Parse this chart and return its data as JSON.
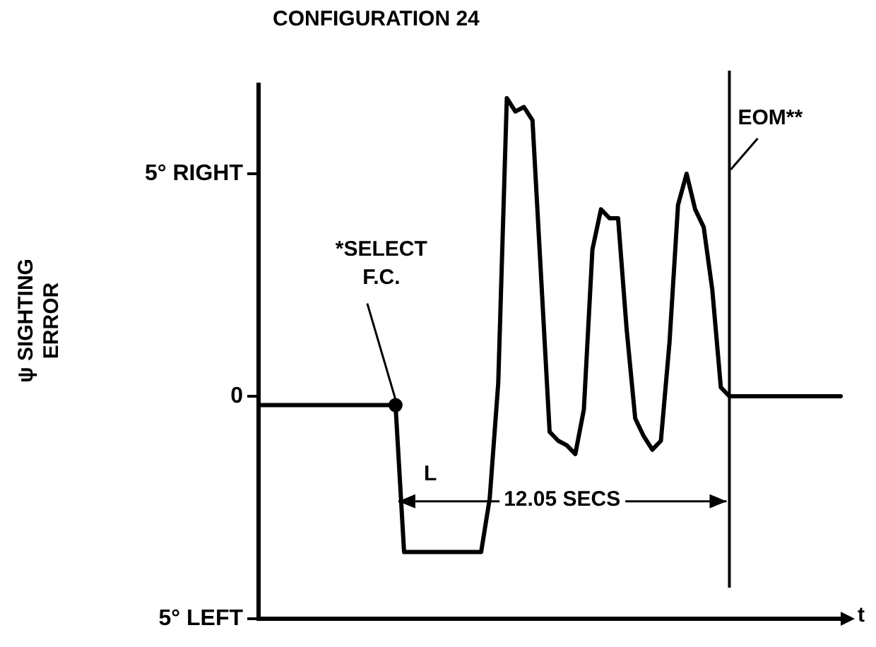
{
  "chart_data": {
    "type": "line",
    "title": "CONFIGURATION 24",
    "ylabel": "ψ SIGHTING ERROR",
    "xlabel": "t",
    "categories": [
      null,
      null,
      null,
      null,
      null,
      null,
      null,
      null,
      null,
      null,
      null,
      null,
      null,
      null,
      null,
      null,
      null,
      null,
      null,
      null,
      null,
      null,
      null,
      null,
      null,
      null,
      null,
      null,
      null,
      null,
      null,
      null,
      null,
      null,
      null,
      null,
      null,
      null,
      null,
      null,
      null,
      null,
      null,
      null,
      null,
      null,
      null,
      null,
      null,
      null,
      null,
      null,
      null,
      null,
      null,
      null,
      null,
      null,
      null,
      null,
      null,
      null,
      null,
      null,
      null,
      null,
      null,
      null,
      null
    ],
    "series": [
      {
        "color": "#000000",
        "values": [
          -0.2,
          -0.2,
          -0.2,
          -0.2,
          -0.2,
          -0.2,
          -0.2,
          -0.2,
          -0.2,
          -0.2,
          -0.2,
          -0.2,
          -0.2,
          -0.2,
          -0.2,
          -0.2,
          -0.2,
          -3.5,
          -3.5,
          -3.5,
          -3.5,
          -3.5,
          -3.5,
          -3.5,
          -3.5,
          -3.5,
          -3.5,
          -2.3,
          0.3,
          6.7,
          6.4,
          6.5,
          6.2,
          2.7,
          -0.8,
          -1.0,
          -1.1,
          -1.3,
          -0.3,
          3.3,
          4.2,
          4.0,
          4.0,
          1.5,
          -0.5,
          -0.9,
          -1.2,
          -1.0,
          1.2,
          4.3,
          5.0,
          4.2,
          3.8,
          2.4,
          0.2,
          0,
          0,
          0,
          0,
          0,
          0,
          0,
          0,
          0,
          0,
          0,
          0,
          0,
          0
        ]
      }
    ],
    "ylim": [
      -5,
      7
    ],
    "yticks": [
      {
        "value": -5,
        "label": "5° LEFT"
      },
      0,
      {
        "value": 5,
        "label": "5° RIGHT"
      }
    ],
    "tick_labels": "y",
    "grid": false,
    "legend": false,
    "marker": "none",
    "line_style": "solid",
    "annotations": [
      "*SELECT F.C.",
      "L",
      "12.05 SECS",
      "EOM**"
    ]
  }
}
